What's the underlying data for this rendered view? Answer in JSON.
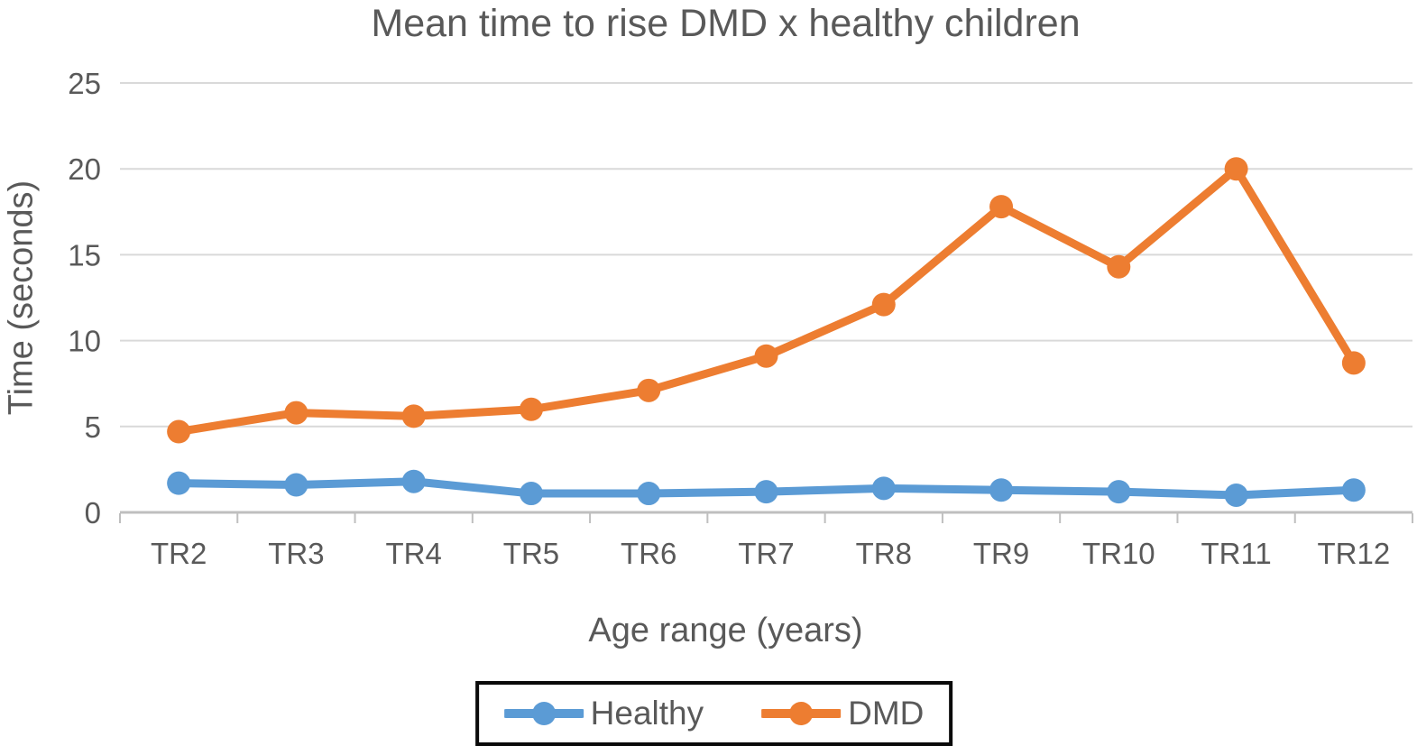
{
  "chart_data": {
    "type": "line",
    "title": "Mean time to rise DMD x healthy children",
    "xlabel": "Age range (years)",
    "ylabel": "Time (seconds)",
    "categories": [
      "TR2",
      "TR3",
      "TR4",
      "TR5",
      "TR6",
      "TR7",
      "TR8",
      "TR9",
      "TR10",
      "TR11",
      "TR12"
    ],
    "series": [
      {
        "name": "Healthy",
        "color": "#5B9BD5",
        "values": [
          1.7,
          1.6,
          1.8,
          1.1,
          1.1,
          1.2,
          1.4,
          1.3,
          1.2,
          1.0,
          1.3
        ]
      },
      {
        "name": "DMD",
        "color": "#ED7D31",
        "values": [
          4.7,
          5.8,
          5.6,
          6.0,
          7.1,
          9.1,
          12.1,
          17.8,
          14.3,
          20.0,
          8.7
        ]
      }
    ],
    "ylim": [
      0,
      25
    ],
    "ytick_step": 5,
    "yticks": [
      0,
      5,
      10,
      15,
      20,
      25
    ],
    "grid": true,
    "legend_position": "bottom",
    "colors": {
      "text": "#595959",
      "gridline": "#D9D9D9",
      "axis": "#BFBFBF",
      "legend_border": "#0A0A0A",
      "background": "#FFFFFF"
    }
  }
}
